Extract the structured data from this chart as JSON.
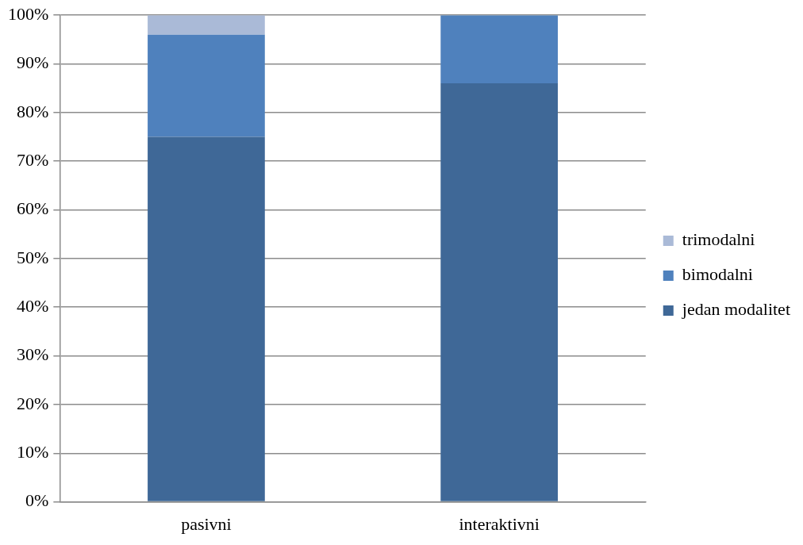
{
  "chart_data": {
    "type": "bar",
    "stacked": true,
    "categories": [
      "pasivni",
      "interaktivni"
    ],
    "series": [
      {
        "name": "jedan modalitet",
        "color": "#3f6897",
        "values": [
          75,
          86
        ]
      },
      {
        "name": "bimodalni",
        "color": "#4f81bd",
        "values": [
          21,
          14
        ]
      },
      {
        "name": "trimodalni",
        "color": "#aabad7",
        "values": [
          4,
          0
        ]
      }
    ],
    "ylim": [
      0,
      100
    ],
    "yticks": [
      {
        "value": 0,
        "label": "0%"
      },
      {
        "value": 10,
        "label": "10%"
      },
      {
        "value": 20,
        "label": "20%"
      },
      {
        "value": 30,
        "label": "30%"
      },
      {
        "value": 40,
        "label": "40%"
      },
      {
        "value": 50,
        "label": "50%"
      },
      {
        "value": 60,
        "label": "60%"
      },
      {
        "value": 70,
        "label": "70%"
      },
      {
        "value": 80,
        "label": "80%"
      },
      {
        "value": 90,
        "label": "90%"
      },
      {
        "value": 100,
        "label": "100%"
      }
    ],
    "grid": "y",
    "legend": "right"
  }
}
